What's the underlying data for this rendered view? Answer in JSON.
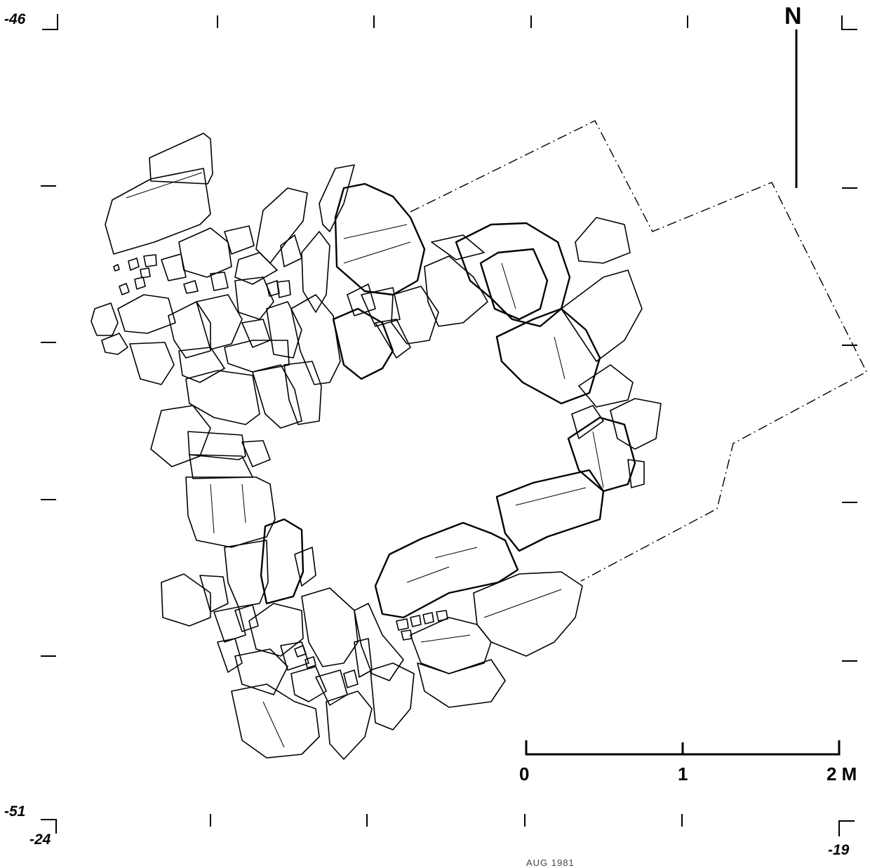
{
  "coordinates": {
    "top_left": "-46",
    "bottom_left_y": "-51",
    "bottom_left_x": "-24",
    "bottom_right_x": "-19"
  },
  "north_label": "N",
  "scale": {
    "labels": [
      "0",
      "1",
      "2 M"
    ],
    "unit": "M",
    "length": 2
  },
  "credit_text": "AUG 1981"
}
